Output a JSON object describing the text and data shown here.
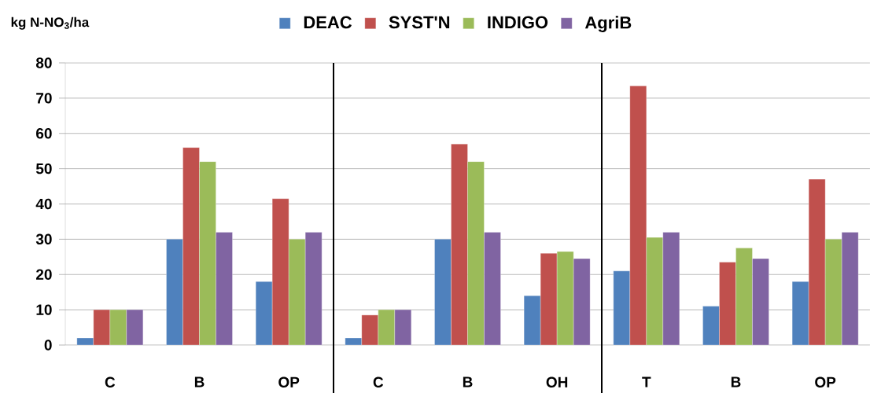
{
  "chart_data": {
    "type": "bar",
    "ylabel": "kg N-NO$_{3}$/ha",
    "categories": [
      "C",
      "B",
      "OP",
      "C",
      "B",
      "OH",
      "T",
      "B",
      "OP"
    ],
    "series": [
      {
        "name": "DEAC",
        "color": "#4f81bd",
        "values": [
          2,
          30,
          18,
          2,
          30,
          14,
          21,
          11,
          18
        ]
      },
      {
        "name": "SYST'N",
        "color": "#c0504d",
        "values": [
          10,
          56,
          41.5,
          8.5,
          57,
          26,
          73.5,
          23.5,
          47
        ]
      },
      {
        "name": "INDIGO",
        "color": "#9bbb59",
        "values": [
          10,
          52,
          30,
          10,
          52,
          26.5,
          30.5,
          27.5,
          30
        ]
      },
      {
        "name": "AgriB",
        "color": "#8064a2",
        "values": [
          10,
          32,
          32,
          10,
          32,
          24.5,
          32,
          24.5,
          32
        ]
      }
    ],
    "ylim": [
      0,
      80
    ],
    "yticks": [
      0,
      10,
      20,
      30,
      40,
      50,
      60,
      70,
      80
    ],
    "grid": "y",
    "legend": "top"
  }
}
